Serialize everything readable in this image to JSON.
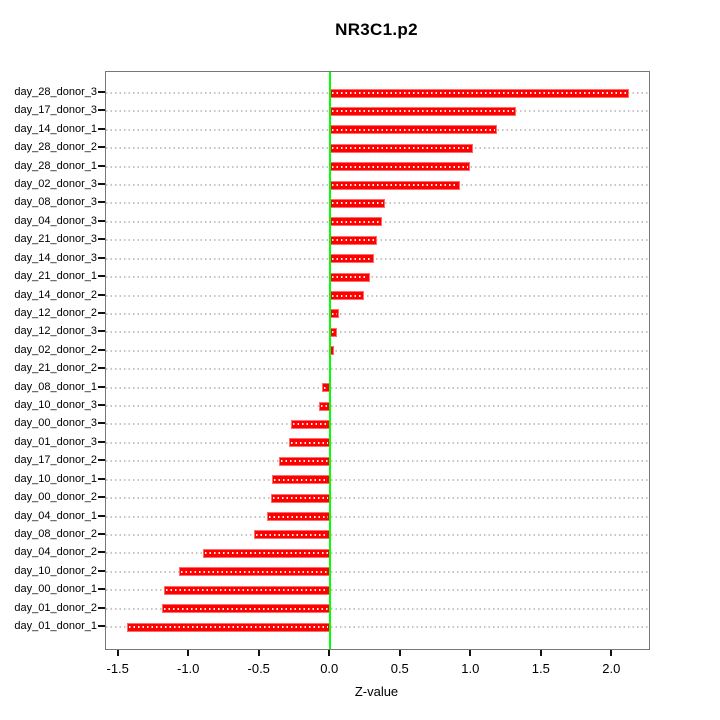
{
  "page": {
    "background": "#ffffff"
  },
  "chart_data": {
    "type": "bar",
    "orientation": "horizontal",
    "title": "NR3C1.p2",
    "xlabel": "Z-value",
    "ylabel": "",
    "legend": "none",
    "grid": "horizontal-dotted",
    "xlim": [
      -1.59,
      2.26
    ],
    "x_tick_values": [
      -1.5,
      -1.0,
      -0.5,
      0.0,
      0.5,
      1.0,
      1.5,
      2.0
    ],
    "x_tick_labels": [
      "-1.5",
      "-1.0",
      "-0.5",
      "0.0",
      "0.5",
      "1.0",
      "1.5",
      "2.0"
    ],
    "zero_reference_line": 0.0,
    "categories": [
      "day_28_donor_3",
      "day_17_donor_3",
      "day_14_donor_1",
      "day_28_donor_2",
      "day_28_donor_1",
      "day_02_donor_3",
      "day_08_donor_3",
      "day_04_donor_3",
      "day_21_donor_3",
      "day_14_donor_3",
      "day_21_donor_1",
      "day_14_donor_2",
      "day_12_donor_2",
      "day_12_donor_3",
      "day_02_donor_2",
      "day_21_donor_2",
      "day_08_donor_1",
      "day_10_donor_3",
      "day_00_donor_3",
      "day_01_donor_3",
      "day_17_donor_2",
      "day_10_donor_1",
      "day_00_donor_2",
      "day_04_donor_1",
      "day_08_donor_2",
      "day_04_donor_2",
      "day_10_donor_2",
      "day_00_donor_1",
      "day_01_donor_2",
      "day_01_donor_1"
    ],
    "values": [
      2.12,
      1.32,
      1.18,
      1.01,
      0.99,
      0.92,
      0.39,
      0.37,
      0.33,
      0.31,
      0.28,
      0.24,
      0.06,
      0.05,
      0.03,
      0.0,
      -0.06,
      -0.08,
      -0.28,
      -0.29,
      -0.36,
      -0.41,
      -0.42,
      -0.45,
      -0.54,
      -0.9,
      -1.07,
      -1.18,
      -1.19,
      -1.44
    ],
    "colors": {
      "bar": "#ff0000",
      "bar_edge": "#ff6b6b",
      "bar_inner_dots": "#ffffff",
      "zero_line": "#00ff00",
      "grid_dots": "#c4c4c4",
      "axis_box": "#777777",
      "tick": "#111111",
      "text": "#000000",
      "background": "#ffffff"
    }
  }
}
